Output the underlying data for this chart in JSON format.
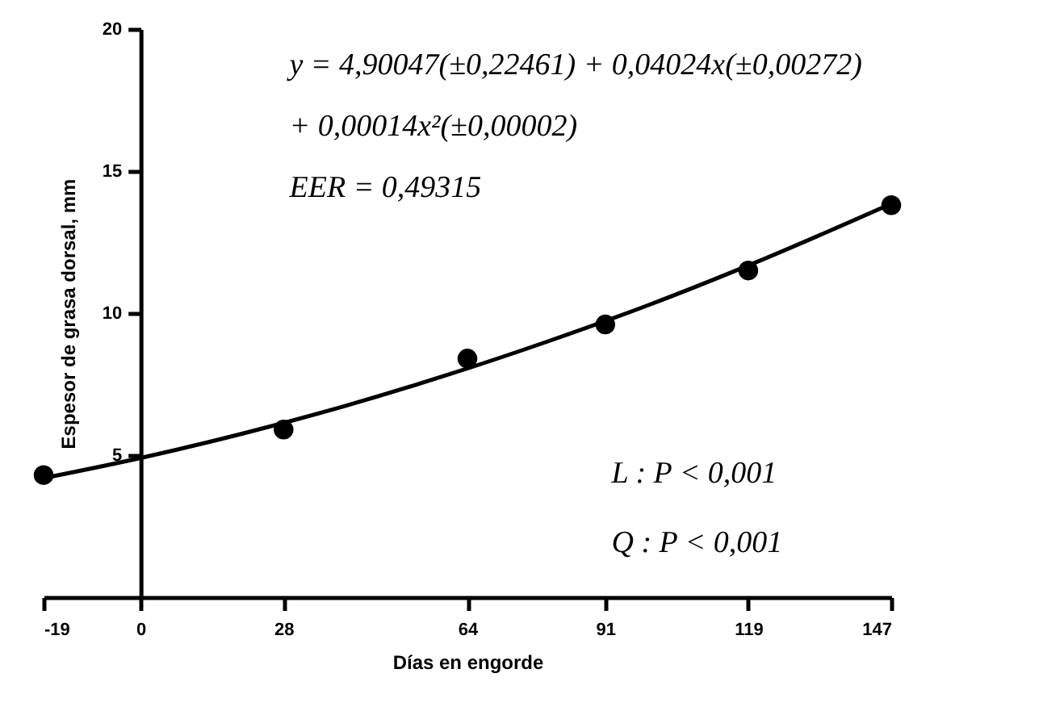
{
  "chart_data": {
    "type": "scatter",
    "xlabel": "Días en engorde",
    "ylabel": "Espesor de grasa dorsal, mm",
    "xlim": [
      -19,
      147
    ],
    "xticks": [
      -19,
      0,
      28,
      64,
      91,
      119,
      147
    ],
    "ylim": [
      0,
      20
    ],
    "yticks": [
      5,
      10,
      15,
      20
    ],
    "grid": false,
    "marker": "circle",
    "series": [
      {
        "color": "#000000",
        "x": [
          -19,
          28,
          64,
          91,
          119,
          147
        ],
        "values": [
          4.3,
          5.9,
          8.4,
          9.6,
          11.5,
          13.8
        ]
      },
      {
        "type": "line",
        "color": "#000000",
        "line_style": "solid",
        "marker": "none",
        "x": [
          -19,
          0,
          20,
          40,
          60,
          80,
          100,
          120,
          147
        ],
        "values": [
          4.19,
          4.9,
          5.76,
          6.73,
          7.82,
          9.02,
          10.32,
          11.75,
          13.85
        ]
      }
    ],
    "annotations": [
      "y = 4,90047(±0,22461) + 0,04024x(±0,00272)",
      "+ 0,00014x²(±0,00002)",
      "EER = 0,49315",
      "L : P < 0,001",
      "Q : P < 0,001"
    ]
  }
}
